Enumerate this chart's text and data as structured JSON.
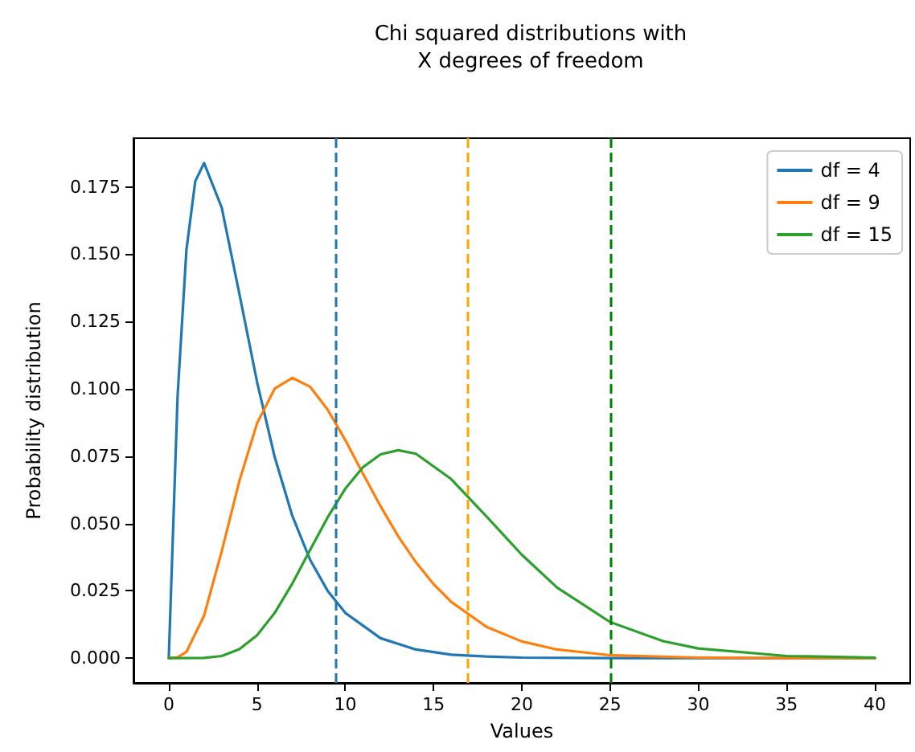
{
  "chart_data": {
    "type": "line",
    "title": "Chi squared distributions with\nX degrees of freedom",
    "xlabel": "Values",
    "ylabel": "Probability distribution",
    "xlim": [
      -2,
      42
    ],
    "ylim": [
      -0.0092,
      0.1931
    ],
    "xticks": [
      0,
      5,
      10,
      15,
      20,
      25,
      30,
      35,
      40
    ],
    "yticks": [
      {
        "value": 0,
        "label": "0.000"
      },
      {
        "value": 0.025,
        "label": "0.025"
      },
      {
        "value": 0.05,
        "label": "0.050"
      },
      {
        "value": 0.075,
        "label": "0.075"
      },
      {
        "value": 0.1,
        "label": "0.100"
      },
      {
        "value": 0.125,
        "label": "0.125"
      },
      {
        "value": 0.15,
        "label": "0.150"
      },
      {
        "value": 0.175,
        "label": "0.175"
      }
    ],
    "grid": false,
    "legend": "top right",
    "line_style": "solid",
    "marker": "none",
    "series": [
      {
        "name": "df = 4",
        "color": "#1f77b4",
        "x": [
          0,
          0.5,
          1,
          1.5,
          2,
          3,
          4,
          5,
          6,
          7,
          8,
          9,
          10,
          12,
          14,
          16,
          18,
          20,
          25,
          30,
          40
        ],
        "values": [
          0,
          0.0974,
          0.1516,
          0.1771,
          0.1839,
          0.1673,
          0.1353,
          0.1026,
          0.0747,
          0.0528,
          0.0366,
          0.025,
          0.0168,
          0.0074,
          0.0032,
          0.0013,
          0.0006,
          0.0002,
          0,
          0,
          0
        ]
      },
      {
        "name": "df = 9",
        "color": "#ff7f0e",
        "x": [
          0,
          0.5,
          1,
          2,
          3,
          4,
          5,
          6,
          7,
          8,
          9,
          10,
          11,
          12,
          13,
          14,
          15,
          16,
          18,
          20,
          22,
          25,
          30,
          35,
          40
        ],
        "values": [
          0,
          0.0003,
          0.0023,
          0.0158,
          0.0397,
          0.0658,
          0.0872,
          0.1001,
          0.1041,
          0.1008,
          0.0923,
          0.081,
          0.0685,
          0.0564,
          0.0452,
          0.0356,
          0.0275,
          0.0209,
          0.0116,
          0.0062,
          0.0032,
          0.0011,
          0.0002,
          0,
          0
        ]
      },
      {
        "name": "df = 15",
        "color": "#2ca02c",
        "x": [
          0,
          2,
          3,
          4,
          5,
          6,
          7,
          8,
          9,
          10,
          11,
          12,
          13,
          14,
          16,
          18,
          20,
          22,
          25,
          28,
          30,
          35,
          40
        ],
        "values": [
          0,
          0.0001,
          0.0008,
          0.0033,
          0.0085,
          0.0168,
          0.0277,
          0.0401,
          0.0523,
          0.0629,
          0.0709,
          0.0757,
          0.0772,
          0.0759,
          0.0665,
          0.0526,
          0.0384,
          0.0262,
          0.0134,
          0.0063,
          0.0036,
          0.0008,
          0.0002
        ]
      }
    ],
    "ref_lines": [
      {
        "axis": "x",
        "value": 9.49,
        "color": "#1f77b4",
        "line_style": "dashed"
      },
      {
        "axis": "x",
        "value": 16.92,
        "color": "#ffa500",
        "line_style": "dashed"
      },
      {
        "axis": "x",
        "value": 25.0,
        "color": "#008000",
        "line_style": "dashed"
      }
    ]
  }
}
